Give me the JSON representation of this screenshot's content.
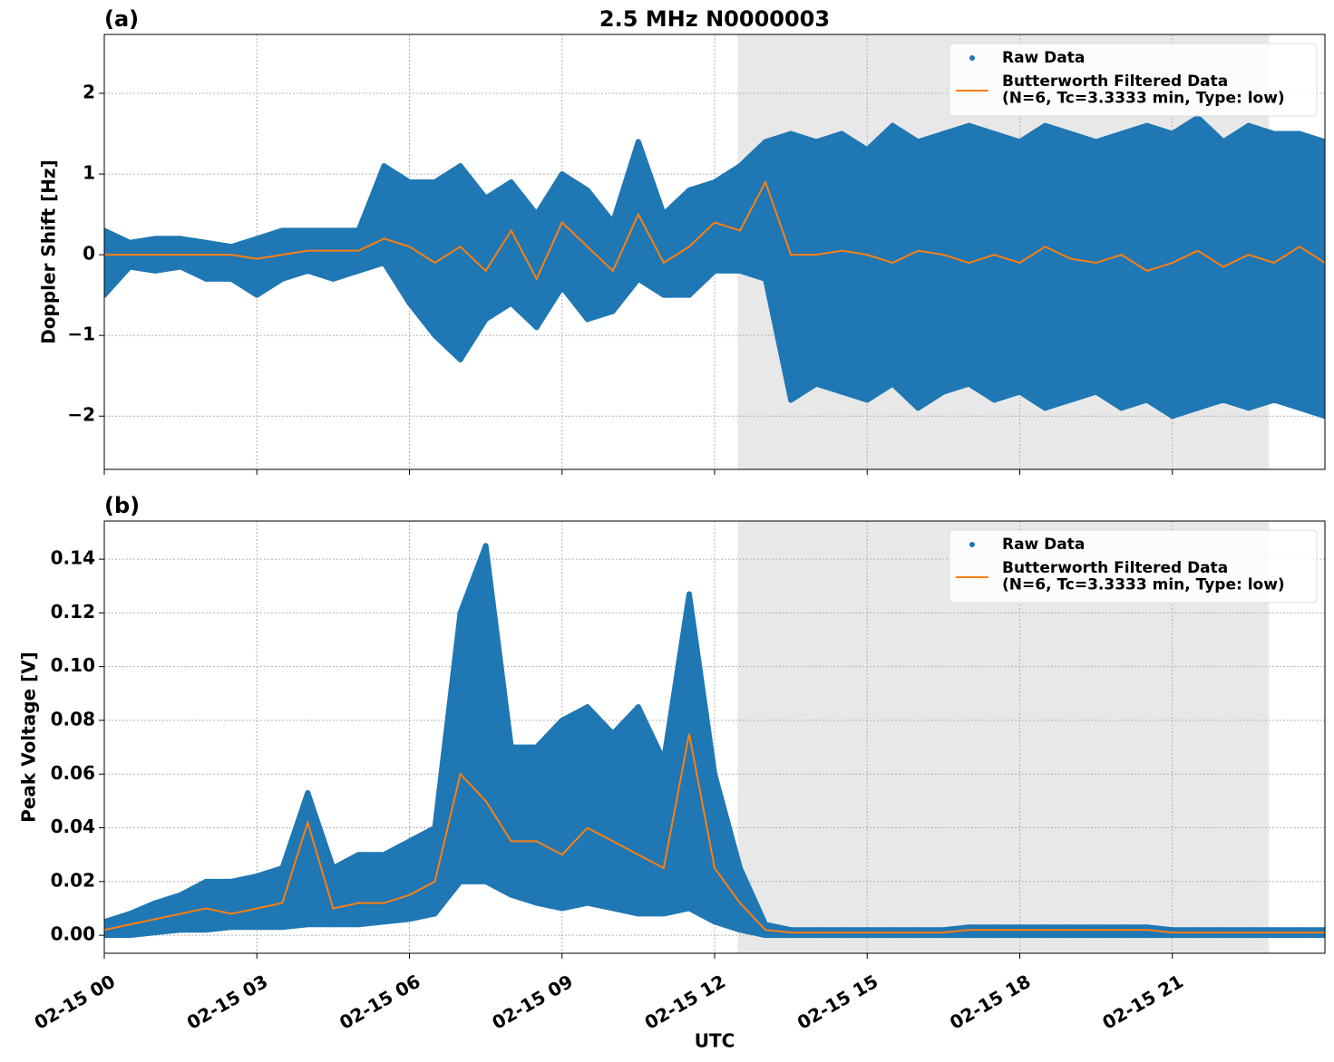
{
  "chart_data": [
    {
      "type": "scatter",
      "label": "(a)",
      "title": "2.5 MHz N0000003",
      "ylabel": "Doppler Shift [Hz]",
      "xlim": [
        0,
        24
      ],
      "xticks": [
        0,
        3,
        6,
        9,
        12,
        15,
        18,
        21
      ],
      "ylim": [
        -2.66,
        2.73
      ],
      "yticks": [
        {
          "value": -2,
          "label": "−2"
        },
        {
          "value": -1,
          "label": "−1"
        },
        0,
        1,
        2
      ],
      "grid": true,
      "shaded_region": [
        12.45,
        22.9
      ],
      "shade_color": "#e8e8e8",
      "legend": "upper right",
      "series": [
        {
          "name": "Raw Data",
          "type": "scatter",
          "color": "#1f77b4",
          "x": [
            0,
            0.5,
            1,
            1.5,
            2,
            2.5,
            3,
            3.5,
            4,
            4.5,
            5,
            5.5,
            6,
            6.5,
            7,
            7.5,
            8,
            8.5,
            9,
            9.5,
            10,
            10.5,
            11,
            11.5,
            12,
            12.5,
            13,
            13.5,
            14,
            14.5,
            15,
            15.5,
            16,
            16.5,
            17,
            17.5,
            18,
            18.5,
            19,
            19.5,
            20,
            20.5,
            21,
            21.5,
            22,
            22.5,
            23,
            23.5,
            24
          ],
          "upper": [
            0.3,
            0.15,
            0.2,
            0.2,
            0.15,
            0.1,
            0.2,
            0.3,
            0.3,
            0.3,
            0.3,
            1.1,
            0.9,
            0.9,
            1.1,
            0.7,
            0.9,
            0.5,
            1.0,
            0.8,
            0.4,
            1.4,
            0.5,
            0.8,
            0.9,
            1.1,
            1.4,
            1.5,
            1.4,
            1.5,
            1.3,
            1.6,
            1.4,
            1.5,
            1.6,
            1.5,
            1.4,
            1.6,
            1.5,
            1.4,
            1.5,
            1.6,
            1.5,
            1.7,
            1.4,
            1.6,
            1.5,
            1.5,
            1.4
          ],
          "lower": [
            -0.5,
            -0.15,
            -0.2,
            -0.15,
            -0.3,
            -0.3,
            -0.5,
            -0.3,
            -0.2,
            -0.3,
            -0.2,
            -0.1,
            -0.6,
            -1.0,
            -1.3,
            -0.8,
            -0.6,
            -0.9,
            -0.4,
            -0.8,
            -0.7,
            -0.3,
            -0.5,
            -0.5,
            -0.2,
            -0.2,
            -0.3,
            -1.8,
            -1.6,
            -1.7,
            -1.8,
            -1.6,
            -1.9,
            -1.7,
            -1.6,
            -1.8,
            -1.7,
            -1.9,
            -1.8,
            -1.7,
            -1.9,
            -1.8,
            -2.0,
            -1.9,
            -1.8,
            -1.9,
            -1.8,
            -1.9,
            -2.0
          ]
        },
        {
          "name": "Butterworth Filtered Data\n(N=6, Tc=3.3333 min, Type: low)",
          "type": "line",
          "color": "#ff7f0e",
          "x": [
            0,
            0.5,
            1,
            1.5,
            2,
            2.5,
            3,
            3.5,
            4,
            4.5,
            5,
            5.5,
            6,
            6.5,
            7,
            7.5,
            8,
            8.5,
            9,
            9.5,
            10,
            10.5,
            11,
            11.5,
            12,
            12.5,
            13,
            13.5,
            14,
            14.5,
            15,
            15.5,
            16,
            16.5,
            17,
            17.5,
            18,
            18.5,
            19,
            19.5,
            20,
            20.5,
            21,
            21.5,
            22,
            22.5,
            23,
            23.5,
            24
          ],
          "values": [
            0,
            0,
            0,
            0,
            0,
            0,
            -0.05,
            0,
            0.05,
            0.05,
            0.05,
            0.2,
            0.1,
            -0.1,
            0.1,
            -0.2,
            0.3,
            -0.3,
            0.4,
            0.1,
            -0.2,
            0.5,
            -0.1,
            0.1,
            0.4,
            0.3,
            0.9,
            0,
            0,
            0.05,
            0,
            -0.1,
            0.05,
            0,
            -0.1,
            0,
            -0.1,
            0.1,
            -0.05,
            -0.1,
            0,
            -0.2,
            -0.1,
            0.05,
            -0.15,
            0,
            -0.1,
            0.1,
            -0.1
          ]
        }
      ]
    },
    {
      "type": "scatter",
      "label": "(b)",
      "ylabel": "Peak Voltage [V]",
      "xlabel": "UTC",
      "xlim": [
        0,
        24
      ],
      "xticks": [
        {
          "value": 0,
          "label": "02-15 00"
        },
        {
          "value": 3,
          "label": "02-15 03"
        },
        {
          "value": 6,
          "label": "02-15 06"
        },
        {
          "value": 9,
          "label": "02-15 09"
        },
        {
          "value": 12,
          "label": "02-15 12"
        },
        {
          "value": 15,
          "label": "02-15 15"
        },
        {
          "value": 18,
          "label": "02-15 18"
        },
        {
          "value": 21,
          "label": "02-15 21"
        }
      ],
      "ylim": [
        -0.0067,
        0.1542
      ],
      "yticks": [
        {
          "value": 0,
          "label": "0.00"
        },
        0.02,
        0.04,
        0.06,
        0.08,
        {
          "value": 0.1,
          "label": "0.10"
        },
        0.12,
        0.14
      ],
      "grid": true,
      "shaded_region": [
        12.45,
        22.9
      ],
      "shade_color": "#e8e8e8",
      "legend": "upper right",
      "series": [
        {
          "name": "Raw Data",
          "type": "scatter",
          "color": "#1f77b4",
          "x": [
            0,
            0.5,
            1,
            1.5,
            2,
            2.5,
            3,
            3.5,
            4,
            4.5,
            5,
            5.5,
            6,
            6.5,
            7,
            7.5,
            8,
            8.5,
            9,
            9.5,
            10,
            10.5,
            11,
            11.5,
            12,
            12.5,
            13,
            13.5,
            14,
            14.5,
            15,
            15.5,
            16,
            16.5,
            17,
            17.5,
            18,
            18.5,
            19,
            19.5,
            20,
            20.5,
            21,
            21.5,
            22,
            22.5,
            23,
            23.5,
            24
          ],
          "upper": [
            0.005,
            0.008,
            0.012,
            0.015,
            0.02,
            0.02,
            0.022,
            0.025,
            0.053,
            0.025,
            0.03,
            0.03,
            0.035,
            0.04,
            0.12,
            0.145,
            0.07,
            0.07,
            0.08,
            0.085,
            0.075,
            0.085,
            0.065,
            0.127,
            0.06,
            0.025,
            0.004,
            0.002,
            0.002,
            0.002,
            0.002,
            0.002,
            0.002,
            0.002,
            0.003,
            0.003,
            0.003,
            0.003,
            0.003,
            0.003,
            0.003,
            0.003,
            0.002,
            0.002,
            0.002,
            0.002,
            0.002,
            0.002,
            0.002
          ],
          "lower": [
            0,
            0,
            0.001,
            0.002,
            0.002,
            0.003,
            0.003,
            0.003,
            0.004,
            0.004,
            0.004,
            0.005,
            0.006,
            0.008,
            0.02,
            0.02,
            0.015,
            0.012,
            0.01,
            0.012,
            0.01,
            0.008,
            0.008,
            0.01,
            0.005,
            0.002,
            0,
            0,
            0,
            0,
            0,
            0,
            0,
            0,
            0,
            0,
            0,
            0,
            0,
            0,
            0,
            0,
            0,
            0,
            0,
            0,
            0,
            0,
            0
          ]
        },
        {
          "name": "Butterworth Filtered Data\n(N=6, Tc=3.3333 min, Type: low)",
          "type": "line",
          "color": "#ff7f0e",
          "x": [
            0,
            0.5,
            1,
            1.5,
            2,
            2.5,
            3,
            3.5,
            4,
            4.5,
            5,
            5.5,
            6,
            6.5,
            7,
            7.5,
            8,
            8.5,
            9,
            9.5,
            10,
            10.5,
            11,
            11.5,
            12,
            12.5,
            13,
            13.5,
            14,
            14.5,
            15,
            15.5,
            16,
            16.5,
            17,
            17.5,
            18,
            18.5,
            19,
            19.5,
            20,
            20.5,
            21,
            21.5,
            22,
            22.5,
            23,
            23.5,
            24
          ],
          "values": [
            0.002,
            0.004,
            0.006,
            0.008,
            0.01,
            0.008,
            0.01,
            0.012,
            0.042,
            0.01,
            0.012,
            0.012,
            0.015,
            0.02,
            0.06,
            0.05,
            0.035,
            0.035,
            0.03,
            0.04,
            0.035,
            0.03,
            0.025,
            0.075,
            0.025,
            0.012,
            0.002,
            0.001,
            0.001,
            0.001,
            0.001,
            0.001,
            0.001,
            0.001,
            0.002,
            0.002,
            0.002,
            0.002,
            0.002,
            0.002,
            0.002,
            0.002,
            0.001,
            0.001,
            0.001,
            0.001,
            0.001,
            0.001,
            0.001
          ]
        }
      ]
    }
  ]
}
